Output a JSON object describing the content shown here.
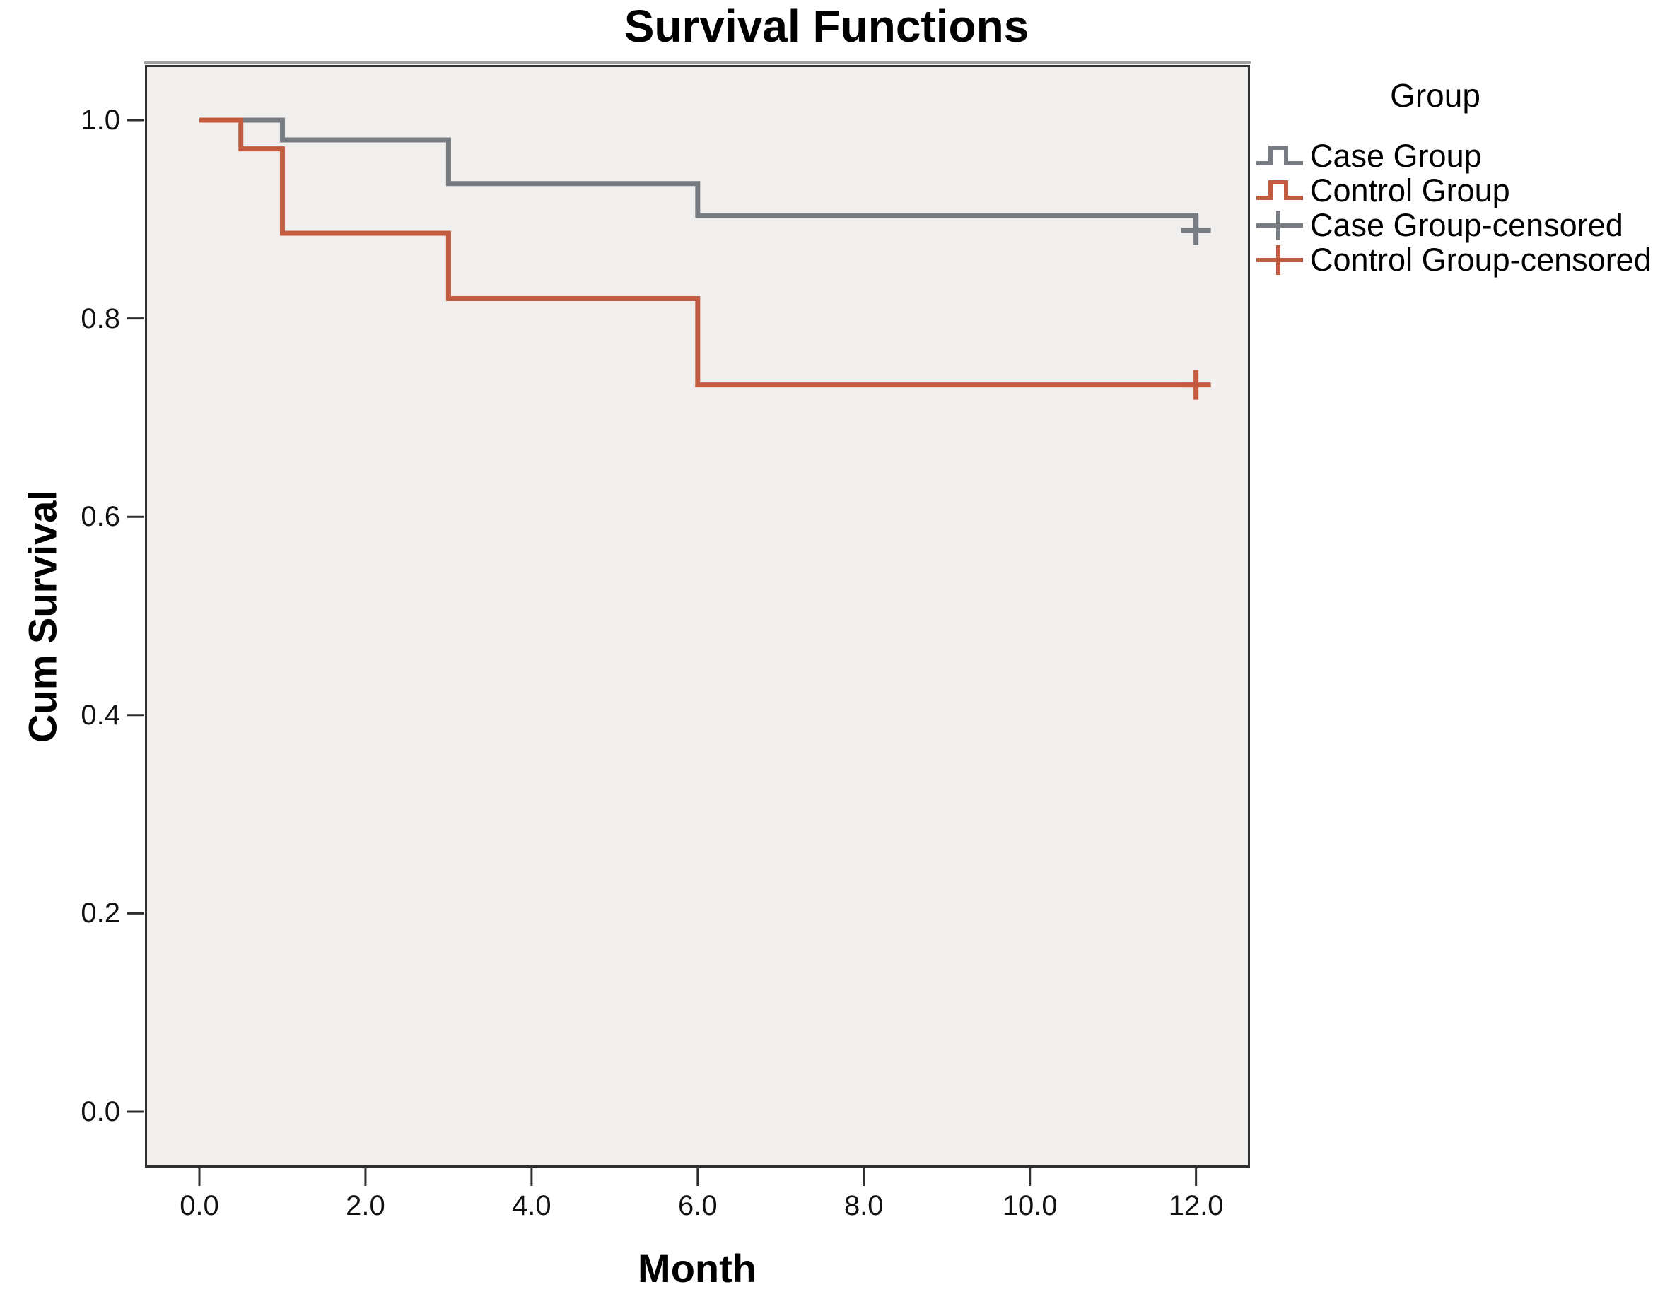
{
  "title": "Survival Functions",
  "axes": {
    "x": {
      "label": "Month",
      "tick_labels": [
        "0.0",
        "2.0",
        "4.0",
        "6.0",
        "8.0",
        "10.0",
        "12.0"
      ],
      "tick_values": [
        0,
        2,
        4,
        6,
        8,
        10,
        12
      ]
    },
    "y": {
      "label": "Cum Survival",
      "tick_labels": [
        "0.0",
        "0.2",
        "0.4",
        "0.6",
        "0.8",
        "1.0"
      ],
      "tick_values": [
        0,
        0.2,
        0.4,
        0.6,
        0.8,
        1.0
      ]
    }
  },
  "legend": {
    "title": "Group",
    "entries": [
      {
        "label": "Case Group",
        "glyph": "step-line",
        "series": "case"
      },
      {
        "label": "Control Group",
        "glyph": "step-line",
        "series": "control"
      },
      {
        "label": "Case Group-censored",
        "glyph": "plus-line",
        "series": "case"
      },
      {
        "label": "Control Group-censored",
        "glyph": "plus-line",
        "series": "control"
      }
    ]
  },
  "colors": {
    "case": "#777b82",
    "control": "#c25b40",
    "plot_bg": "#f0efed",
    "frame": "#2e2e2e",
    "frame_highlight": "#a0a0a0",
    "text": "#000000"
  },
  "chart_data": {
    "type": "line",
    "subtype": "kaplan-meier-step",
    "title": "Survival Functions",
    "xlabel": "Month",
    "ylabel": "Cum Survival",
    "xlim": [
      -0.66,
      12.65
    ],
    "ylim": [
      -0.056,
      1.056
    ],
    "grid": false,
    "legend_position": "right-top-outside",
    "series": [
      {
        "name": "Case Group",
        "color": "#777b82",
        "steps": [
          [
            0,
            1.0
          ],
          [
            1,
            0.98
          ],
          [
            3,
            0.936
          ],
          [
            6,
            0.904
          ],
          [
            12,
            0.889
          ]
        ],
        "censored": [
          [
            12,
            0.889
          ]
        ]
      },
      {
        "name": "Control Group",
        "color": "#c25b40",
        "steps": [
          [
            0,
            1.0
          ],
          [
            0.5,
            0.971
          ],
          [
            1,
            0.886
          ],
          [
            3,
            0.82
          ],
          [
            6,
            0.733
          ],
          [
            12,
            0.733
          ]
        ],
        "censored": [
          [
            12,
            0.733
          ]
        ]
      }
    ]
  }
}
